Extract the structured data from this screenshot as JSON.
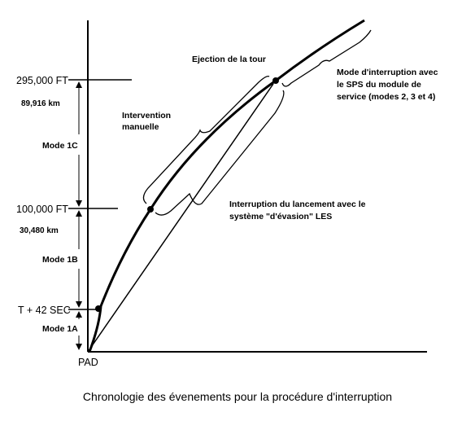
{
  "altitude_labels": {
    "alt_295k": "295,000 FT",
    "alt_295k_km": "89,916 km",
    "alt_100k": "100,000 FT",
    "alt_100k_km": "30,480 km",
    "t42": "T + 42 SEC",
    "pad": "PAD"
  },
  "modes": {
    "mode_1c": "Mode 1C",
    "mode_1b": "Mode 1B",
    "mode_1a": "Mode 1A"
  },
  "annotations": {
    "tower_jettison": "Ejection de la tour",
    "manual_1": "Intervention",
    "manual_2": "manuelle",
    "sps_1": "Mode d'interruption avec",
    "sps_2": "le SPS du module de",
    "sps_3": "service (modes 2, 3 et 4)",
    "les_1": "Interruption du lancement avec le",
    "les_2": "système \"d'évasion\" LES"
  },
  "caption": "Chronologie des évenements pour la procédure d'interruption",
  "colors": {
    "ink": "#000000",
    "background": "#ffffff"
  }
}
